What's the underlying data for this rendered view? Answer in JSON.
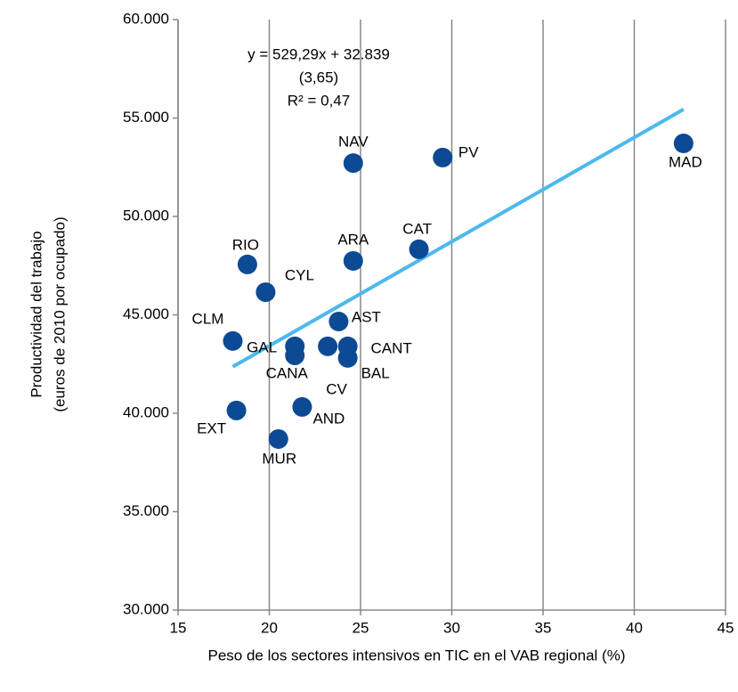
{
  "chart_data": {
    "type": "scatter",
    "xlabel": "Peso de los sectores intensivos en TIC en el VAB regional (%)",
    "ylabel": [
      "Productividad del trabajo",
      "(euros de 2010 por ocupado)"
    ],
    "annotations": [
      "y = 529,29x + 32.839",
      "(3,65)",
      "R² = 0,47"
    ],
    "labels": [
      "NAV",
      "PV",
      "MAD",
      "CAT",
      "ARA",
      "RIO",
      "CYL",
      "AST",
      "CLM",
      "GAL",
      "CANA",
      "CV",
      "CANT",
      "BAL",
      "AND",
      "EXT",
      "MUR"
    ],
    "x": [
      24.6,
      29.5,
      42.7,
      28.2,
      24.6,
      18.8,
      19.8,
      23.8,
      18.0,
      21.4,
      21.4,
      23.2,
      24.3,
      24.3,
      21.8,
      18.2,
      20.5
    ],
    "values": [
      52710,
      52990,
      53710,
      48330,
      47740,
      47560,
      46150,
      44660,
      43670,
      43400,
      42940,
      43400,
      43400,
      42810,
      40320,
      40140,
      38690
    ],
    "color": "#0d4a94",
    "trendline": {
      "x": [
        18,
        42.7
      ],
      "values": [
        42366,
        55440
      ],
      "color": "#4db8ef"
    },
    "xlim": [
      15,
      45
    ],
    "xticks": [
      15,
      20,
      25,
      30,
      35,
      40,
      45
    ],
    "ylim": [
      30000,
      60000
    ],
    "yticks": [
      {
        "value": 30000,
        "label": "30.000"
      },
      {
        "value": 35000,
        "label": "35.000"
      },
      {
        "value": 40000,
        "label": "40.000"
      },
      {
        "value": 45000,
        "label": "45.000"
      },
      {
        "value": 50000,
        "label": "50.000"
      },
      {
        "value": 55000,
        "label": "55.000"
      },
      {
        "value": 60000,
        "label": "60.000"
      }
    ],
    "xgrid": true
  }
}
